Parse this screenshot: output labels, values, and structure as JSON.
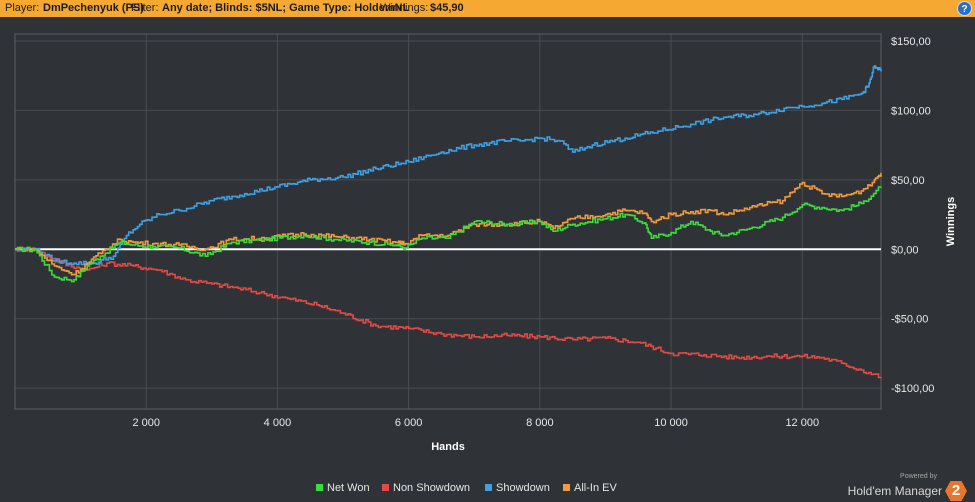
{
  "header": {
    "player_label": "Player:",
    "player_value": "DmPechenyuk (PS)",
    "filter_label": "Filter:",
    "filter_value": "Any date; Blinds: $5NL; Game Type: HoldemNL",
    "winnings_label": "Winnings:",
    "winnings_value": "$45,90",
    "help_label": "?"
  },
  "branding": {
    "powered_by": "Powered by",
    "name": "Hold'em Manager",
    "logo_text": "2"
  },
  "colors": {
    "background": "#2f3236",
    "header": "#f5a832",
    "grid": "#4a4d52",
    "zero_line": "#ffffff"
  },
  "chart_data": {
    "type": "line",
    "xlabel": "Hands",
    "ylabel": "Winnings",
    "xlim": [
      0,
      13200
    ],
    "ylim": [
      -115,
      155
    ],
    "x_ticks": [
      2000,
      4000,
      6000,
      8000,
      10000,
      12000
    ],
    "x_tick_labels": [
      "2 000",
      "4 000",
      "6 000",
      "8 000",
      "10 000",
      "12 000"
    ],
    "y_ticks": [
      150,
      100,
      50,
      0,
      -50,
      -100
    ],
    "y_tick_labels": [
      "$150,00",
      "$100,00",
      "$50,00",
      "$0,00",
      "-$50,00",
      "-$100,00"
    ],
    "grid": true,
    "legend_position": "bottom-center",
    "series": [
      {
        "name": "Net Won",
        "color": "#3ddc3d",
        "x": [
          0,
          300,
          600,
          900,
          1100,
          1300,
          1600,
          1800,
          2100,
          2500,
          2900,
          3300,
          3800,
          4400,
          4900,
          5400,
          5800,
          5950,
          6200,
          6600,
          7000,
          7500,
          8000,
          8200,
          8500,
          9000,
          9300,
          9600,
          9700,
          10000,
          10300,
          10600,
          10800,
          11200,
          11700,
          12000,
          12300,
          12600,
          12900,
          13200
        ],
        "y": [
          0,
          0,
          -20,
          -22,
          -12,
          -5,
          5,
          3,
          2,
          1,
          -5,
          5,
          7,
          10,
          7,
          5,
          3,
          1,
          8,
          8,
          20,
          18,
          20,
          13,
          18,
          22,
          25,
          19,
          8,
          12,
          20,
          13,
          10,
          15,
          23,
          32,
          30,
          28,
          33,
          45
        ]
      },
      {
        "name": "Non Showdown",
        "color": "#e14b45",
        "x": [
          0,
          300,
          700,
          1100,
          1400,
          1800,
          2200,
          2600,
          3000,
          3400,
          3800,
          4200,
          4600,
          5000,
          5500,
          6000,
          6500,
          7000,
          7500,
          8000,
          8500,
          9000,
          9500,
          10000,
          10500,
          11000,
          11500,
          12000,
          12300,
          12600,
          12900,
          13200
        ],
        "y": [
          0,
          0,
          -10,
          -15,
          -10,
          -12,
          -15,
          -22,
          -25,
          -28,
          -32,
          -36,
          -40,
          -46,
          -55,
          -57,
          -61,
          -63,
          -62,
          -63,
          -65,
          -64,
          -67,
          -75,
          -76,
          -78,
          -77,
          -77,
          -78,
          -82,
          -87,
          -92
        ]
      },
      {
        "name": "Showdown",
        "color": "#3fa0e3",
        "x": [
          0,
          300,
          600,
          900,
          1200,
          1500,
          1700,
          1900,
          2200,
          2500,
          3000,
          3500,
          4000,
          4500,
          5000,
          5500,
          6000,
          6500,
          7000,
          7500,
          7700,
          8000,
          8300,
          8500,
          8800,
          9300,
          9800,
          10300,
          10800,
          11300,
          11800,
          12300,
          12600,
          12900,
          13000,
          13100,
          13200
        ],
        "y": [
          0,
          0,
          -8,
          -10,
          -10,
          -5,
          10,
          18,
          25,
          28,
          35,
          40,
          45,
          50,
          52,
          58,
          63,
          70,
          75,
          78,
          78,
          80,
          78,
          70,
          75,
          80,
          85,
          90,
          95,
          97,
          102,
          105,
          108,
          112,
          117,
          132,
          128
        ]
      },
      {
        "name": "All-In EV",
        "color": "#f39a3a",
        "x": [
          0,
          300,
          600,
          900,
          1100,
          1300,
          1600,
          1800,
          2100,
          2500,
          2900,
          3300,
          3800,
          4400,
          4900,
          5400,
          5800,
          5950,
          6200,
          6600,
          7000,
          7500,
          8000,
          8200,
          8500,
          9000,
          9300,
          9600,
          9700,
          10000,
          10300,
          10600,
          10800,
          11200,
          11700,
          12000,
          12300,
          12600,
          12900,
          13100,
          13200
        ],
        "y": [
          0,
          0,
          -12,
          -18,
          -10,
          -3,
          7,
          5,
          4,
          3,
          0,
          7,
          8,
          11,
          9,
          7,
          5,
          4,
          10,
          10,
          18,
          18,
          20,
          15,
          22,
          25,
          28,
          26,
          20,
          25,
          27,
          28,
          25,
          30,
          35,
          48,
          40,
          38,
          42,
          50,
          55
        ]
      }
    ]
  }
}
